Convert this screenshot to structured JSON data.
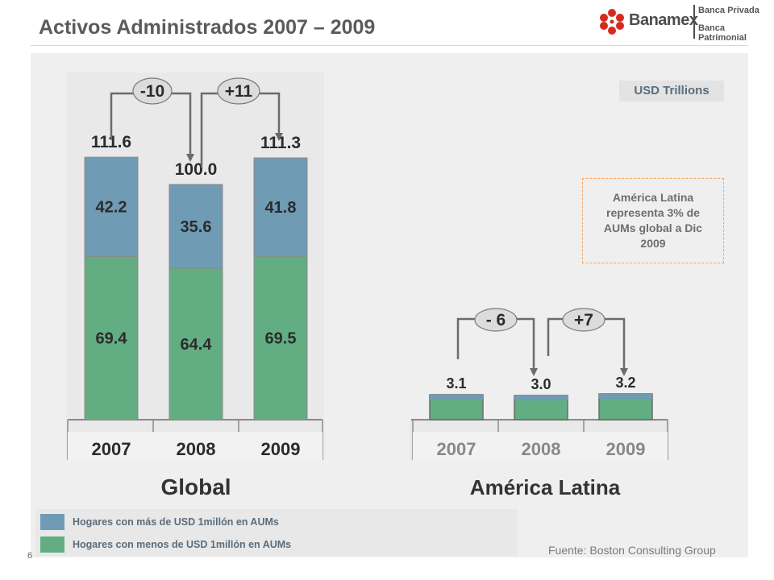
{
  "page": {
    "title": "Activos Administrados 2007 – 2009",
    "page_number": "6",
    "source": "Fuente: Boston Consulting Group",
    "unit_badge": "USD Trillions",
    "note": "América Latina representa 3% de AUMs global a Dic 2009"
  },
  "logo": {
    "brand": "Banamex",
    "line1": "Banca Privada",
    "line2": "Banca Patrimonial",
    "brand_color": "#d52b1e"
  },
  "legend": [
    {
      "label": "Hogares con más de USD 1millón en AUMs",
      "color": "#6f9bb4"
    },
    {
      "label": "Hogares con menos de USD 1millón en AUMs",
      "color": "#62ad82"
    }
  ],
  "chart_data": [
    {
      "type": "bar",
      "stacked": true,
      "title": "Global",
      "categories": [
        "2007",
        "2008",
        "2009"
      ],
      "series": [
        {
          "name": "Hogares con menos de USD 1millón en AUMs",
          "values": [
            69.4,
            64.4,
            69.5
          ],
          "color": "#62ad82"
        },
        {
          "name": "Hogares con más de USD 1millón en AUMs",
          "values": [
            42.2,
            35.6,
            41.8
          ],
          "color": "#6f9bb4"
        }
      ],
      "totals": [
        "111.6",
        "100.0",
        "111.3"
      ],
      "changes": [
        "-10",
        "+11"
      ]
    },
    {
      "type": "bar",
      "stacked": true,
      "title": "América Latina",
      "categories": [
        "2007",
        "2008",
        "2009"
      ],
      "totals": [
        "3.1",
        "3.0",
        "3.2"
      ],
      "changes": [
        "- 6",
        "+7"
      ]
    }
  ]
}
